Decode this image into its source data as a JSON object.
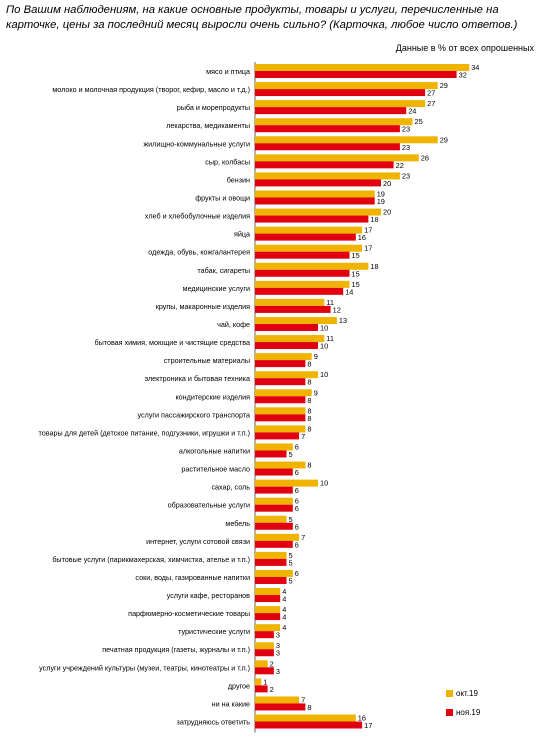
{
  "title": "По Вашим наблюдениям, на какие основные продукты, товары и услуги, перечисленные на карточке, цены за последний месяц выросли очень сильно? (Карточка, любое число ответов.)",
  "note": "Данные в % от всех опрошенных",
  "colors": {
    "oct": "#F0B400",
    "nov": "#E00010"
  },
  "chart_data": {
    "type": "bar",
    "orientation": "horizontal",
    "title": "По Вашим наблюдениям, на какие основные продукты, товары и услуги, перечисленные на карточке, цены за последний месяц выросли очень сильно? (Карточка, любое число ответов.)",
    "unit": "Данные в % от всех опрошенных",
    "legend_position": "bottom-right",
    "grid": false,
    "xlim": [
      0,
      34
    ],
    "categories": [
      "мясо и птица",
      "молоко и молочная продукция (творог, кефир, масло и т.д.)",
      "рыба и морепродукты",
      "лекарства, медикаменты",
      "жилищно-коммунальные услуги",
      "сыр, колбасы",
      "бензин",
      "фрукты и овощи",
      "хлеб и хлебобулочные изделия",
      "яйца",
      "одежда, обувь, кожгалантерея",
      "табак, сигареты",
      "медицинские услуги",
      "крупы, макаронные изделия",
      "чай, кофе",
      "бытовая химия, моющие и чистящие средства",
      "строительные материалы",
      "электроника и бытовая техника",
      "кондитерские изделия",
      "услуги пассажирского транспорта",
      "товары для детей (детское питание, подгузники, игрушки и т.п.)",
      "алкогольные напитки",
      "растительное масло",
      "сахар, соль",
      "образовательные услуги",
      "мебель",
      "интернет, услуги сотовой связи",
      "бытовые услуги (парикмахерская, химчистка, ателье и т.п.)",
      "соки, воды, газированные напитки",
      "услуги кафе, ресторанов",
      "парфюмерно-косметические товары",
      "туристические услуги",
      "печатная продукция (газеты, журналы и т.п.)",
      "услуги учреждений культуры (музеи, театры, кинотеатры и т.п.)",
      "другое",
      "ни на какие",
      "затрудняюсь ответить"
    ],
    "series": [
      {
        "name": "окт.19",
        "color": "#F0B400",
        "values": [
          34,
          29,
          27,
          25,
          29,
          26,
          23,
          19,
          20,
          17,
          17,
          18,
          15,
          11,
          13,
          11,
          9,
          10,
          9,
          8,
          8,
          6,
          8,
          10,
          6,
          5,
          7,
          5,
          6,
          4,
          4,
          4,
          3,
          2,
          1,
          7,
          16
        ]
      },
      {
        "name": "ноя.19",
        "color": "#E00010",
        "values": [
          32,
          27,
          24,
          23,
          23,
          22,
          20,
          19,
          18,
          16,
          15,
          15,
          14,
          12,
          10,
          10,
          8,
          8,
          8,
          8,
          7,
          5,
          6,
          6,
          6,
          6,
          6,
          5,
          5,
          4,
          4,
          3,
          3,
          3,
          2,
          8,
          17
        ]
      }
    ]
  }
}
